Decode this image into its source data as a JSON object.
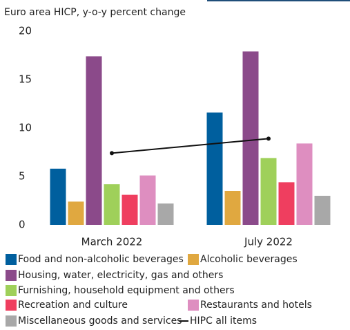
{
  "chart_data": {
    "type": "bar",
    "title": "Euro area HICP, y-o-y percent change",
    "categories": [
      "March 2022",
      "July 2022"
    ],
    "ylim": [
      0,
      20
    ],
    "yticks": [
      0,
      5,
      10,
      15,
      20
    ],
    "grid": false,
    "series": [
      {
        "name": "Food and non-alcoholic beverages",
        "color": "#005f9e",
        "values": [
          5.8,
          11.6
        ]
      },
      {
        "name": "Alcoholic beverages",
        "color": "#e0a840",
        "values": [
          2.4,
          3.5
        ]
      },
      {
        "name": "Housing, water, electricity, gas and others",
        "color": "#8b4a8a",
        "values": [
          17.4,
          17.9
        ]
      },
      {
        "name": "Furnishing, household equipment and others",
        "color": "#9fd05a",
        "values": [
          4.2,
          6.9
        ]
      },
      {
        "name": "Recreation and culture",
        "color": "#ef3e5f",
        "values": [
          3.1,
          4.4
        ]
      },
      {
        "name": "Restaurants and hotels",
        "color": "#de8ec0",
        "values": [
          5.1,
          8.4
        ]
      },
      {
        "name": "Miscellaneous goods and services",
        "color": "#a8a8a8",
        "values": [
          2.2,
          3.0
        ]
      },
      {
        "name": "HIPC all items",
        "color": "#111111",
        "type": "line",
        "values": [
          7.4,
          8.9
        ]
      }
    ]
  }
}
